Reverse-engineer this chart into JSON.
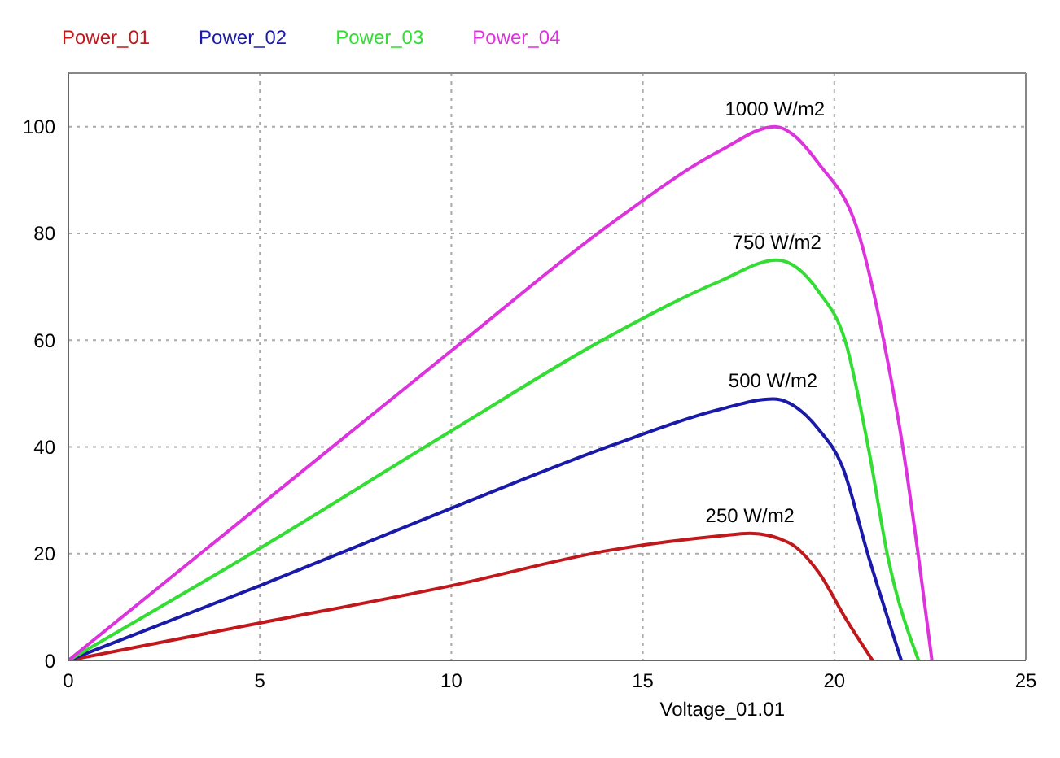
{
  "chart_data": {
    "type": "line",
    "xlabel": "Voltage_01.01",
    "xlim": [
      0,
      25
    ],
    "xticks": [
      0,
      5,
      10,
      15,
      20,
      25
    ],
    "ylim": [
      0,
      110
    ],
    "yticks": [
      0,
      20,
      40,
      60,
      80,
      100
    ],
    "grid": true,
    "legend": "top left",
    "series": [
      {
        "name": "Power_01",
        "color": "#c0181c",
        "x": [
          0,
          5,
          10,
          14.2,
          17,
          17.8,
          18.8,
          19.6,
          20.3,
          21
        ],
        "values": [
          0,
          7,
          14,
          20.7,
          23.3,
          23.8,
          22.1,
          16.4,
          7.8,
          0
        ]
      },
      {
        "name": "Power_02",
        "color": "#1a1aa8",
        "x": [
          0,
          5,
          10,
          14.2,
          17,
          18.4,
          19.6,
          20.2,
          20.9,
          21.75
        ],
        "values": [
          0,
          14,
          28.5,
          40.3,
          47,
          49,
          43.2,
          36.5,
          19.3,
          0
        ]
      },
      {
        "name": "Power_03",
        "color": "#33dd33",
        "x": [
          0,
          5,
          10,
          14.2,
          17,
          18.5,
          19.6,
          20.3,
          20.9,
          21.4,
          22.2
        ],
        "values": [
          0,
          21,
          43,
          61,
          71,
          75,
          69,
          59.5,
          39.4,
          19.3,
          0
        ]
      },
      {
        "name": "Power_04",
        "color": "#dd33dd",
        "x": [
          0,
          5,
          10,
          14.2,
          17,
          18.45,
          19.6,
          20.65,
          21.3,
          21.8,
          22.2,
          22.55
        ],
        "values": [
          0,
          29,
          58,
          82,
          95.4,
          100,
          93,
          79.6,
          59.5,
          39.4,
          19.3,
          0
        ]
      }
    ],
    "annotations": [
      {
        "text": "250 W/m2",
        "x": 17.8,
        "y": 23.8
      },
      {
        "text": "500 W/m2",
        "x": 18.4,
        "y": 49
      },
      {
        "text": "750 W/m2",
        "x": 18.5,
        "y": 75
      },
      {
        "text": "1000 W/m2",
        "x": 18.45,
        "y": 100
      }
    ]
  }
}
